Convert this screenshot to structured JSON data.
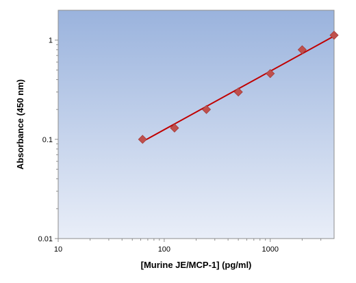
{
  "chart_data": {
    "type": "scatter",
    "title": "",
    "xlabel": "[Murine JE/MCP-1] (pg/ml)",
    "ylabel": "Absorbance (450 nm)",
    "x_scale": "log",
    "y_scale": "log",
    "xlim": [
      10,
      4000
    ],
    "ylim": [
      0.01,
      2
    ],
    "x_ticks": [
      10,
      100,
      1000
    ],
    "x_tick_labels": [
      "10",
      "100",
      "1000"
    ],
    "y_ticks": [
      0.01,
      0.1,
      1
    ],
    "y_tick_labels": [
      "0.01",
      "0.1",
      "1"
    ],
    "grid": false,
    "legend": "none",
    "series": [
      {
        "marker": "diamond",
        "color": "#c0504d",
        "x": [
          62.5,
          125,
          250,
          500,
          1000,
          2000,
          4000
        ],
        "y": [
          0.1,
          0.13,
          0.2,
          0.3,
          0.46,
          0.8,
          1.12
        ]
      }
    ],
    "fit_line": {
      "color": "#c00000",
      "x": [
        62.5,
        4000
      ],
      "y": [
        0.095,
        1.1
      ]
    },
    "plot_background": {
      "gradient_top": "#9ab3dd",
      "gradient_bottom": "#e9eef8"
    }
  }
}
